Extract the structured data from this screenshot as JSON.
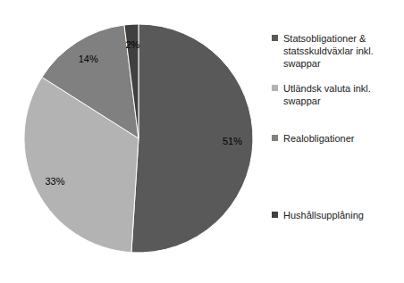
{
  "chart_data": {
    "type": "pie",
    "categories": [
      "Statsobligationer & statsskuldväxlar inkl. swappar",
      "Utländsk valuta inkl. swappar",
      "Realobligationer",
      "Hushållsupplåning"
    ],
    "values": [
      51,
      33,
      14,
      2
    ],
    "value_labels": [
      "51%",
      "33%",
      "14%",
      "2%"
    ],
    "colors": [
      "#595959",
      "#b3b3b3",
      "#808080",
      "#404040"
    ],
    "data_labels": true,
    "legend": "right"
  }
}
